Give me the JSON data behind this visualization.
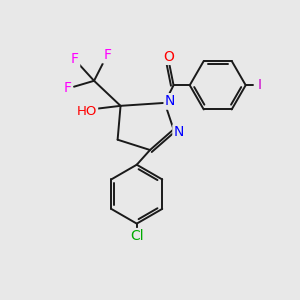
{
  "bg_color": "#e8e8e8",
  "bond_color": "#1a1a1a",
  "atom_colors": {
    "N": "#0000ff",
    "O": "#ff0000",
    "F": "#ff00ff",
    "Cl": "#00aa00",
    "I": "#cc00cc"
  },
  "figsize": [
    3.0,
    3.0
  ],
  "dpi": 100
}
